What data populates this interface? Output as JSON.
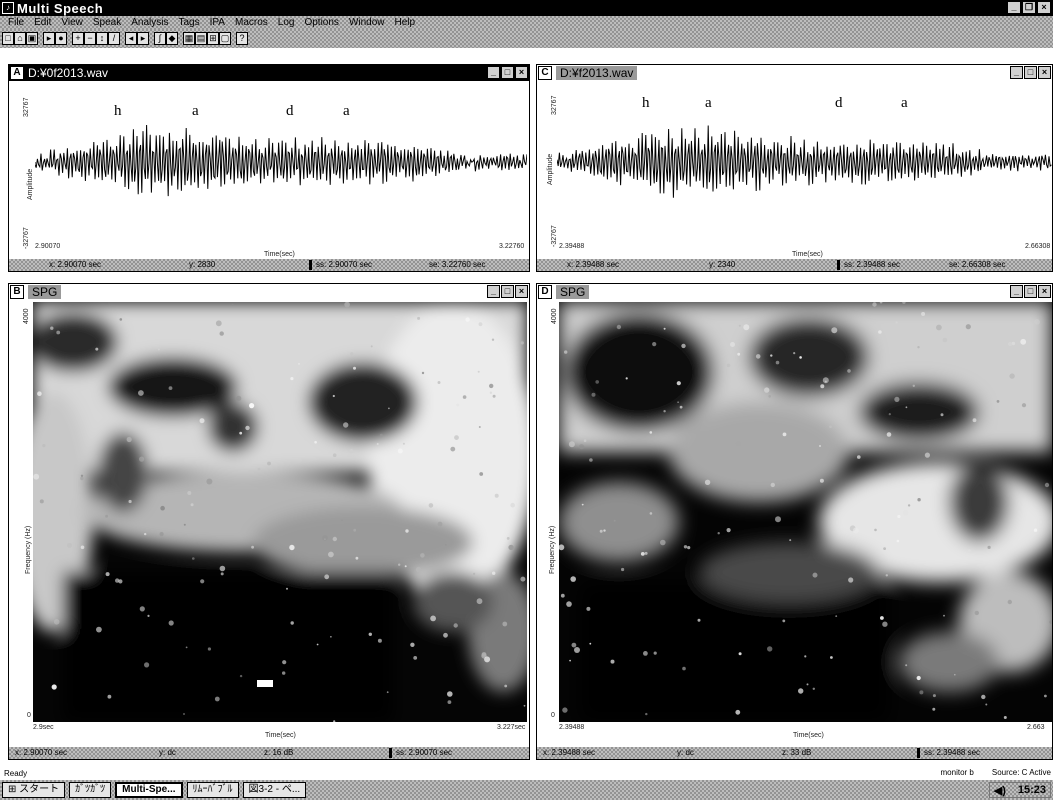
{
  "app": {
    "title": "Multi  Speech",
    "menus": [
      "File",
      "Edit",
      "View",
      "Speak",
      "Analysis",
      "Tags",
      "IPA",
      "Macros",
      "Log",
      "Options",
      "Window",
      "Help"
    ]
  },
  "windows": {
    "a": {
      "id": "A",
      "title": "D:¥0f2013.wav",
      "ylabel": "Amplitude",
      "ytop": "32767",
      "ybottom": "-32767",
      "xstart": "2.90070",
      "xend": "3.22760",
      "xlabel": "Time(sec)",
      "phonemes": [
        "h",
        "a",
        "d",
        "a"
      ],
      "status": {
        "x": "x: 2.90070 sec",
        "y": "y: 2830",
        "left": "ss: 2.90070 sec",
        "right": "se: 3.22760 sec"
      }
    },
    "b": {
      "id": "B",
      "title": "SPG",
      "ylabel": "Frequency (Hz)",
      "ytop": "4000",
      "ybottom": "0",
      "xstart": "2.9sec",
      "xend": "3.227sec",
      "xlabel": "Time(sec)",
      "status": {
        "x": "x: 2.90070 sec",
        "y": "y: dc",
        "z": "z: 16 dB",
        "left": "ss: 2.90070 sec"
      }
    },
    "c": {
      "id": "C",
      "title": "D:¥f2013.wav",
      "ylabel": "Amplitude",
      "ytop": "32767",
      "ybottom": "-32767",
      "xstart": "2.39488",
      "xend": "2.66308",
      "xlabel": "Time(sec)",
      "phonemes": [
        "h",
        "a",
        "d",
        "a"
      ],
      "status": {
        "x": "x: 2.39488 sec",
        "y": "y: 2340",
        "left": "ss: 2.39488 sec",
        "right": "se: 2.66308 sec"
      }
    },
    "d": {
      "id": "D",
      "title": "SPG",
      "ylabel": "Frequency (Hz)",
      "ytop": "4000",
      "ybottom": "0",
      "xstart": "2.39488",
      "xend": "2.663",
      "xlabel": "Time(sec)",
      "status": {
        "x": "x: 2.39488 sec",
        "y": "y: dc",
        "z": "z: 33 dB",
        "left": "ss: 2.39488 sec"
      }
    }
  },
  "status": {
    "ready": "Ready",
    "mode": "monitor b",
    "source": "Source: C Active"
  },
  "taskbar": {
    "start": "スタート",
    "items": [
      "ｶﾞﾂｶﾞﾂ",
      "Multi-Spe...",
      "ﾘﾑｰﾊﾞﾌﾞﾙ",
      "図3-2 - ペ..."
    ],
    "clock": "15:23"
  },
  "icons": {
    "app": "app-logo-icon",
    "speaker": "speaker-icon"
  }
}
